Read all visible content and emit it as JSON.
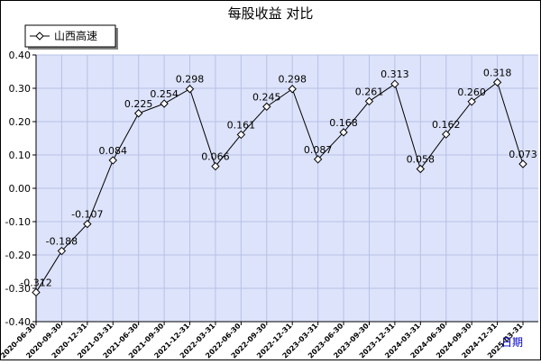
{
  "chart_data": {
    "type": "line",
    "title": "每股收益  对比",
    "xlabel": "日期",
    "ylabel": "",
    "legend_position": "top-left",
    "grid": true,
    "ylim": [
      -0.4,
      0.4
    ],
    "yticks": [
      "0.40",
      "0.30",
      "0.20",
      "0.10",
      "0.00",
      "-0.10",
      "-0.20",
      "-0.30",
      "-0.40"
    ],
    "categories": [
      "2020-06-30",
      "2020-09-30",
      "2020-12-31",
      "2021-03-31",
      "2021-06-30",
      "2021-09-30",
      "2021-12-31",
      "2022-03-31",
      "2022-06-30",
      "2022-09-30",
      "2022-12-31",
      "2023-03-31",
      "2023-06-30",
      "2023-09-30",
      "2023-12-31",
      "2024-03-31",
      "2024-06-30",
      "2024-09-30",
      "2024-12-31",
      "2025-03-31"
    ],
    "series": [
      {
        "name": "山西高速",
        "values": [
          -0.312,
          -0.188,
          -0.107,
          0.084,
          0.225,
          0.254,
          0.298,
          0.066,
          0.161,
          0.245,
          0.298,
          0.087,
          0.168,
          0.261,
          0.313,
          0.058,
          0.162,
          0.26,
          0.318,
          0.073
        ],
        "labels": [
          "-0.312",
          "-0.188",
          "-0.107",
          "0.084",
          "0.225",
          "0.254",
          "0.298",
          "0.066",
          "0.161",
          "0.245",
          "0.298",
          "0.087",
          "0.168",
          "0.261",
          "0.313",
          "0.058",
          "0.162",
          "0.260",
          "0.318",
          "0.073"
        ]
      }
    ],
    "colors": {
      "plot_bg": "#dde3fa",
      "grid": "#b7c1e6",
      "line": "#000000",
      "marker_fill": "#ffffff",
      "xlabel": "#0000cc"
    }
  }
}
